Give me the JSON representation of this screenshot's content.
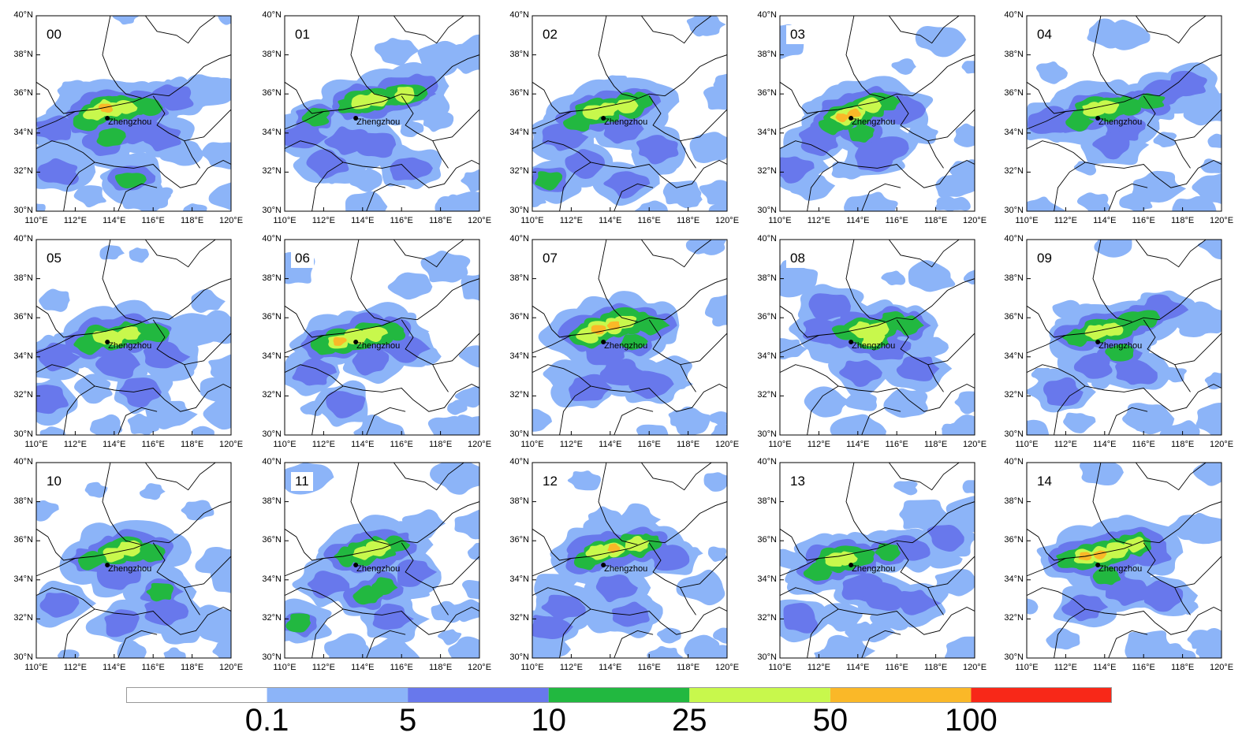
{
  "panels": [
    {
      "label": "00",
      "cells": [
        [
          114,
          35.2,
          3
        ],
        [
          113.6,
          35.3,
          4
        ],
        [
          114.6,
          35.3,
          3
        ],
        [
          113,
          35.0,
          3
        ],
        [
          115.8,
          35.3,
          2
        ],
        [
          115.2,
          35.4,
          2
        ],
        [
          113.8,
          33.8,
          2
        ],
        [
          112.6,
          34.6,
          2
        ],
        [
          115.2,
          34.2,
          1
        ],
        [
          113.4,
          33.6,
          1
        ],
        [
          111.2,
          32.0,
          1
        ],
        [
          115.0,
          31.8,
          1
        ],
        [
          114.8,
          31.6,
          2
        ],
        [
          117,
          35.8,
          1
        ],
        [
          116.4,
          33.8,
          1
        ],
        [
          111,
          34.2,
          1
        ]
      ]
    },
    {
      "label": "01",
      "cells": [
        [
          114,
          35.6,
          3
        ],
        [
          114.6,
          35.7,
          3
        ],
        [
          116.2,
          36.0,
          3
        ],
        [
          115.6,
          35.8,
          2
        ],
        [
          113.4,
          35.4,
          2
        ],
        [
          111.6,
          34.8,
          2
        ],
        [
          113.2,
          33.6,
          1
        ],
        [
          114.8,
          33.4,
          1
        ],
        [
          112.2,
          32.4,
          1
        ],
        [
          116.4,
          32.2,
          1
        ],
        [
          111,
          33.8,
          1
        ],
        [
          117,
          36.4,
          1
        ]
      ]
    },
    {
      "label": "02",
      "cells": [
        [
          113.8,
          35.2,
          3
        ],
        [
          113.2,
          35.1,
          3
        ],
        [
          114.8,
          35.4,
          3
        ],
        [
          115.6,
          35.6,
          2
        ],
        [
          112.4,
          34.6,
          2
        ],
        [
          114.6,
          34.2,
          1
        ],
        [
          111.6,
          33.8,
          1
        ],
        [
          110.8,
          31.6,
          2
        ],
        [
          114.8,
          31.4,
          1
        ],
        [
          116.4,
          33.2,
          1
        ],
        [
          112.8,
          32.4,
          1
        ]
      ]
    },
    {
      "label": "03",
      "cells": [
        [
          113.8,
          35.0,
          4
        ],
        [
          113.2,
          34.8,
          4
        ],
        [
          114.6,
          35.4,
          3
        ],
        [
          115.4,
          35.6,
          2
        ],
        [
          112.6,
          34.4,
          2
        ],
        [
          114.2,
          34.0,
          2
        ],
        [
          115.4,
          33.2,
          1
        ],
        [
          114.8,
          32.8,
          1
        ],
        [
          116.2,
          35.2,
          1
        ],
        [
          112,
          33.6,
          1
        ],
        [
          110.6,
          32.2,
          1
        ]
      ]
    },
    {
      "label": "04",
      "cells": [
        [
          113.4,
          35.2,
          3
        ],
        [
          114.2,
          35.3,
          3
        ],
        [
          115.2,
          35.4,
          2
        ],
        [
          116.4,
          35.6,
          2
        ],
        [
          112.6,
          34.6,
          2
        ],
        [
          115,
          34.2,
          1
        ],
        [
          117,
          36.0,
          1
        ],
        [
          118.2,
          36.4,
          1
        ],
        [
          111.2,
          34.6,
          1
        ],
        [
          114.4,
          33.4,
          1
        ]
      ]
    },
    {
      "label": "05",
      "cells": [
        [
          114,
          35.0,
          3
        ],
        [
          113.4,
          35.0,
          3
        ],
        [
          114.8,
          35.2,
          3
        ],
        [
          116,
          35.2,
          2
        ],
        [
          112.6,
          34.6,
          2
        ],
        [
          116.6,
          34.0,
          1
        ],
        [
          114.2,
          33.6,
          1
        ],
        [
          111.0,
          34.0,
          1
        ],
        [
          110.6,
          31.8,
          1
        ],
        [
          115.4,
          32.2,
          1
        ]
      ]
    },
    {
      "label": "06",
      "cells": [
        [
          112.8,
          34.8,
          4
        ],
        [
          113.6,
          35.0,
          3
        ],
        [
          114.6,
          35.2,
          3
        ],
        [
          115.6,
          35.3,
          2
        ],
        [
          112,
          34.6,
          2
        ],
        [
          116.2,
          34.4,
          1
        ],
        [
          114.4,
          33.8,
          1
        ],
        [
          111.4,
          33.2,
          1
        ],
        [
          113,
          31.6,
          1
        ]
      ]
    },
    {
      "label": "07",
      "cells": [
        [
          113.4,
          35.4,
          4
        ],
        [
          114.2,
          35.6,
          4
        ],
        [
          114.8,
          35.8,
          3
        ],
        [
          112.8,
          35.1,
          3
        ],
        [
          115.6,
          35.8,
          2
        ],
        [
          115.2,
          34.8,
          2
        ],
        [
          116.2,
          35.6,
          2
        ],
        [
          113.8,
          34.2,
          1
        ],
        [
          114.6,
          33.2,
          1
        ],
        [
          112.8,
          32.4,
          1
        ],
        [
          116.2,
          32.6,
          1
        ]
      ]
    },
    {
      "label": "08",
      "cells": [
        [
          114.2,
          35.4,
          3
        ],
        [
          115,
          35.4,
          3
        ],
        [
          114.8,
          34.9,
          3
        ],
        [
          113.4,
          35.2,
          2
        ],
        [
          115.8,
          35.8,
          2
        ],
        [
          116.6,
          35.6,
          2
        ],
        [
          115.6,
          34.4,
          1
        ],
        [
          112.2,
          35.4,
          1
        ],
        [
          112.6,
          36.6,
          1
        ],
        [
          114.2,
          33.2,
          1
        ],
        [
          117,
          33.4,
          1
        ]
      ]
    },
    {
      "label": "09",
      "cells": [
        [
          113.6,
          35.3,
          3
        ],
        [
          114.4,
          35.4,
          3
        ],
        [
          115.4,
          35.8,
          2
        ],
        [
          116.2,
          36.0,
          2
        ],
        [
          117,
          36.4,
          1
        ],
        [
          112.6,
          35.0,
          2
        ],
        [
          114.8,
          34.2,
          2
        ],
        [
          113.4,
          33.6,
          1
        ],
        [
          115.6,
          33.2,
          1
        ],
        [
          111.8,
          32.2,
          1
        ]
      ]
    },
    {
      "label": "10",
      "cells": [
        [
          114,
          35.3,
          3
        ],
        [
          114.8,
          35.6,
          3
        ],
        [
          115.4,
          35.4,
          2
        ],
        [
          116,
          35.4,
          2
        ],
        [
          112.8,
          35.0,
          2
        ],
        [
          116.4,
          33.4,
          2
        ],
        [
          116.6,
          32.4,
          1
        ],
        [
          114.2,
          34.2,
          1
        ],
        [
          111.2,
          32.8,
          1
        ],
        [
          114.4,
          31.8,
          1
        ]
      ]
    },
    {
      "label": "11",
      "cells": [
        [
          114,
          35.4,
          3
        ],
        [
          114.8,
          35.6,
          3
        ],
        [
          115.6,
          35.8,
          2
        ],
        [
          113.2,
          35.2,
          2
        ],
        [
          115,
          33.6,
          2
        ],
        [
          114.2,
          33.2,
          2
        ],
        [
          112.2,
          33.8,
          1
        ],
        [
          110.8,
          31.8,
          2
        ],
        [
          115.4,
          32.0,
          1
        ],
        [
          116.6,
          34.4,
          1
        ]
      ]
    },
    {
      "label": "12",
      "cells": [
        [
          114.2,
          35.6,
          4
        ],
        [
          113.4,
          35.4,
          3
        ],
        [
          115.4,
          35.8,
          3
        ],
        [
          116,
          35.9,
          2
        ],
        [
          112.8,
          35.0,
          2
        ],
        [
          117,
          35.2,
          1
        ],
        [
          114.2,
          33.6,
          1
        ],
        [
          111.6,
          32.6,
          1
        ],
        [
          115,
          32.2,
          1
        ],
        [
          110.8,
          31.6,
          1
        ]
      ]
    },
    {
      "label": "13",
      "cells": [
        [
          113.4,
          35.1,
          3
        ],
        [
          112.8,
          35.0,
          3
        ],
        [
          114.2,
          35.2,
          2
        ],
        [
          115.6,
          35.4,
          2
        ],
        [
          116.6,
          35.6,
          1
        ],
        [
          112,
          34.4,
          2
        ],
        [
          114.2,
          33.6,
          1
        ],
        [
          115.4,
          33.2,
          1
        ],
        [
          117,
          32.8,
          1
        ],
        [
          111,
          32.0,
          1
        ],
        [
          118.6,
          36.2,
          1
        ]
      ]
    },
    {
      "label": "14",
      "cells": [
        [
          113.0,
          35.2,
          4
        ],
        [
          113.8,
          35.3,
          4
        ],
        [
          114.6,
          35.5,
          3
        ],
        [
          115.6,
          35.8,
          3
        ],
        [
          112.2,
          35.0,
          2
        ],
        [
          114.2,
          34.2,
          2
        ],
        [
          116.4,
          35.4,
          1
        ],
        [
          115.2,
          33.4,
          1
        ],
        [
          113,
          32.6,
          1
        ],
        [
          117,
          33.2,
          1
        ]
      ]
    }
  ],
  "axes": {
    "lon_ticks": [
      "110°E",
      "112°E",
      "114°E",
      "116°E",
      "118°E",
      "120°E"
    ],
    "lat_ticks": [
      "40°N",
      "38°N",
      "36°N",
      "34°N",
      "32°N",
      "30°N"
    ],
    "lon_range": [
      110,
      120
    ],
    "lat_range": [
      30,
      40
    ]
  },
  "city": {
    "name": "Zhengzhou",
    "lon": 113.65,
    "lat": 34.76
  },
  "colorbar": {
    "colors": [
      "#ffffff",
      "#8cb4f8",
      "#6878ec",
      "#22b840",
      "#c8f84c",
      "#fab828",
      "#f82818"
    ],
    "labels": [
      "0.1",
      "5",
      "10",
      "25",
      "50",
      "100"
    ]
  },
  "level_colors": [
    "#8cb4f8",
    "#6878ec",
    "#22b840",
    "#c8f84c",
    "#fab828",
    "#f82818"
  ]
}
